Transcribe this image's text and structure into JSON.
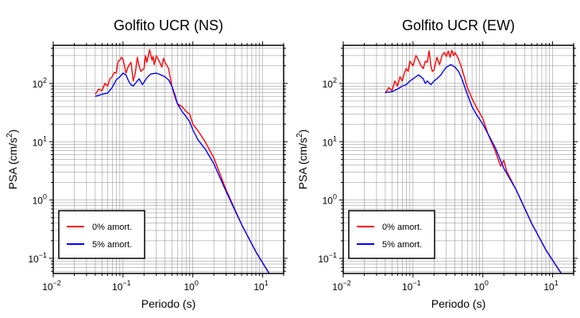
{
  "chart_data": [
    {
      "type": "line",
      "title": "Golfito UCR (NS)",
      "xlabel": "Periodo (s)",
      "ylabel_base": "PSA (cm/s",
      "ylabel_sup": "2",
      "ylabel_close": ")",
      "x_scale": "log",
      "y_scale": "log",
      "xlim": [
        0.01,
        20
      ],
      "ylim": [
        0.055,
        450
      ],
      "grid": true,
      "legend_position": "bottom-left",
      "x_ticks": [
        {
          "base": "10",
          "exp": "−2"
        },
        {
          "base": "10",
          "exp": "−1"
        },
        {
          "base": "10",
          "exp": "0"
        },
        {
          "base": "10",
          "exp": "1"
        }
      ],
      "y_ticks": [
        {
          "base": "10",
          "exp": "−1"
        },
        {
          "base": "10",
          "exp": "0"
        },
        {
          "base": "10",
          "exp": "1"
        },
        {
          "base": "10",
          "exp": "2"
        }
      ],
      "series": [
        {
          "name": "0% amort.",
          "color": "#ff0000",
          "x": [
            0.04,
            0.045,
            0.05,
            0.055,
            0.06,
            0.065,
            0.07,
            0.075,
            0.08,
            0.085,
            0.09,
            0.095,
            0.1,
            0.105,
            0.11,
            0.12,
            0.13,
            0.14,
            0.15,
            0.16,
            0.17,
            0.18,
            0.19,
            0.2,
            0.21,
            0.22,
            0.24,
            0.26,
            0.27,
            0.28,
            0.3,
            0.33,
            0.36,
            0.38,
            0.4,
            0.45,
            0.5,
            0.55,
            0.6,
            0.7,
            0.8,
            0.9,
            1.0,
            1.2,
            1.5,
            2.0,
            3.0,
            5.0,
            8.0,
            13.0
          ],
          "y": [
            65,
            80,
            75,
            100,
            90,
            120,
            130,
            155,
            150,
            240,
            250,
            280,
            260,
            200,
            150,
            200,
            230,
            110,
            150,
            280,
            200,
            160,
            170,
            180,
            300,
            230,
            380,
            250,
            290,
            210,
            300,
            240,
            190,
            270,
            230,
            180,
            90,
            60,
            45,
            40,
            33,
            30,
            20,
            15,
            10,
            5.3,
            1.5,
            0.38,
            0.13,
            0.05
          ]
        },
        {
          "name": "5% amort.",
          "color": "#0000ff",
          "x": [
            0.04,
            0.05,
            0.06,
            0.07,
            0.08,
            0.09,
            0.1,
            0.11,
            0.12,
            0.13,
            0.14,
            0.15,
            0.17,
            0.19,
            0.2,
            0.22,
            0.25,
            0.28,
            0.3,
            0.35,
            0.4,
            0.45,
            0.5,
            0.55,
            0.6,
            0.7,
            0.8,
            0.9,
            1.0,
            1.2,
            1.5,
            2.0,
            3.0,
            5.0,
            8.0,
            13.0
          ],
          "y": [
            60,
            65,
            68,
            85,
            115,
            130,
            150,
            140,
            110,
            95,
            90,
            100,
            120,
            95,
            105,
            125,
            145,
            148,
            150,
            140,
            130,
            115,
            90,
            65,
            45,
            33,
            27,
            22,
            16,
            10.5,
            7.5,
            4.2,
            1.4,
            0.38,
            0.13,
            0.05
          ]
        }
      ]
    },
    {
      "type": "line",
      "title": "Golfito UCR (EW)",
      "xlabel": "Periodo (s)",
      "ylabel_base": "PSA (cm/s",
      "ylabel_sup": "2",
      "ylabel_close": ")",
      "x_scale": "log",
      "y_scale": "log",
      "xlim": [
        0.01,
        20
      ],
      "ylim": [
        0.055,
        450
      ],
      "grid": true,
      "legend_position": "bottom-left",
      "x_ticks": [
        {
          "base": "10",
          "exp": "−2"
        },
        {
          "base": "10",
          "exp": "−1"
        },
        {
          "base": "10",
          "exp": "0"
        },
        {
          "base": "10",
          "exp": "1"
        }
      ],
      "y_ticks": [
        {
          "base": "10",
          "exp": "−1"
        },
        {
          "base": "10",
          "exp": "0"
        },
        {
          "base": "10",
          "exp": "1"
        },
        {
          "base": "10",
          "exp": "2"
        }
      ],
      "series": [
        {
          "name": "0% amort.",
          "color": "#ff0000",
          "x": [
            0.04,
            0.045,
            0.05,
            0.055,
            0.06,
            0.065,
            0.07,
            0.075,
            0.08,
            0.085,
            0.09,
            0.1,
            0.11,
            0.12,
            0.13,
            0.14,
            0.15,
            0.16,
            0.17,
            0.18,
            0.19,
            0.2,
            0.22,
            0.24,
            0.26,
            0.28,
            0.3,
            0.32,
            0.34,
            0.36,
            0.38,
            0.4,
            0.45,
            0.5,
            0.6,
            0.7,
            0.8,
            1.0,
            1.2,
            1.5,
            1.8,
            2.0,
            2.2,
            3.0,
            5.0,
            8.0,
            14.0
          ],
          "y": [
            68,
            85,
            75,
            110,
            90,
            130,
            110,
            150,
            180,
            160,
            240,
            200,
            300,
            250,
            200,
            180,
            240,
            230,
            360,
            200,
            160,
            170,
            280,
            210,
            300,
            340,
            290,
            360,
            280,
            370,
            300,
            340,
            260,
            180,
            85,
            55,
            40,
            25,
            13,
            7,
            3.8,
            4.8,
            3.1,
            1.5,
            0.4,
            0.14,
            0.05
          ]
        },
        {
          "name": "5% amort.",
          "color": "#0000ff",
          "x": [
            0.04,
            0.05,
            0.06,
            0.07,
            0.08,
            0.09,
            0.1,
            0.12,
            0.14,
            0.15,
            0.16,
            0.18,
            0.2,
            0.22,
            0.25,
            0.28,
            0.3,
            0.35,
            0.4,
            0.45,
            0.5,
            0.6,
            0.7,
            0.8,
            1.0,
            1.5,
            2.0,
            3.0,
            5.0,
            8.0,
            14.0
          ],
          "y": [
            70,
            72,
            80,
            90,
            95,
            110,
            120,
            140,
            120,
            100,
            110,
            95,
            110,
            120,
            140,
            170,
            190,
            210,
            190,
            160,
            120,
            65,
            40,
            30,
            20,
            8,
            3.5,
            1.5,
            0.4,
            0.14,
            0.05
          ]
        }
      ]
    }
  ]
}
